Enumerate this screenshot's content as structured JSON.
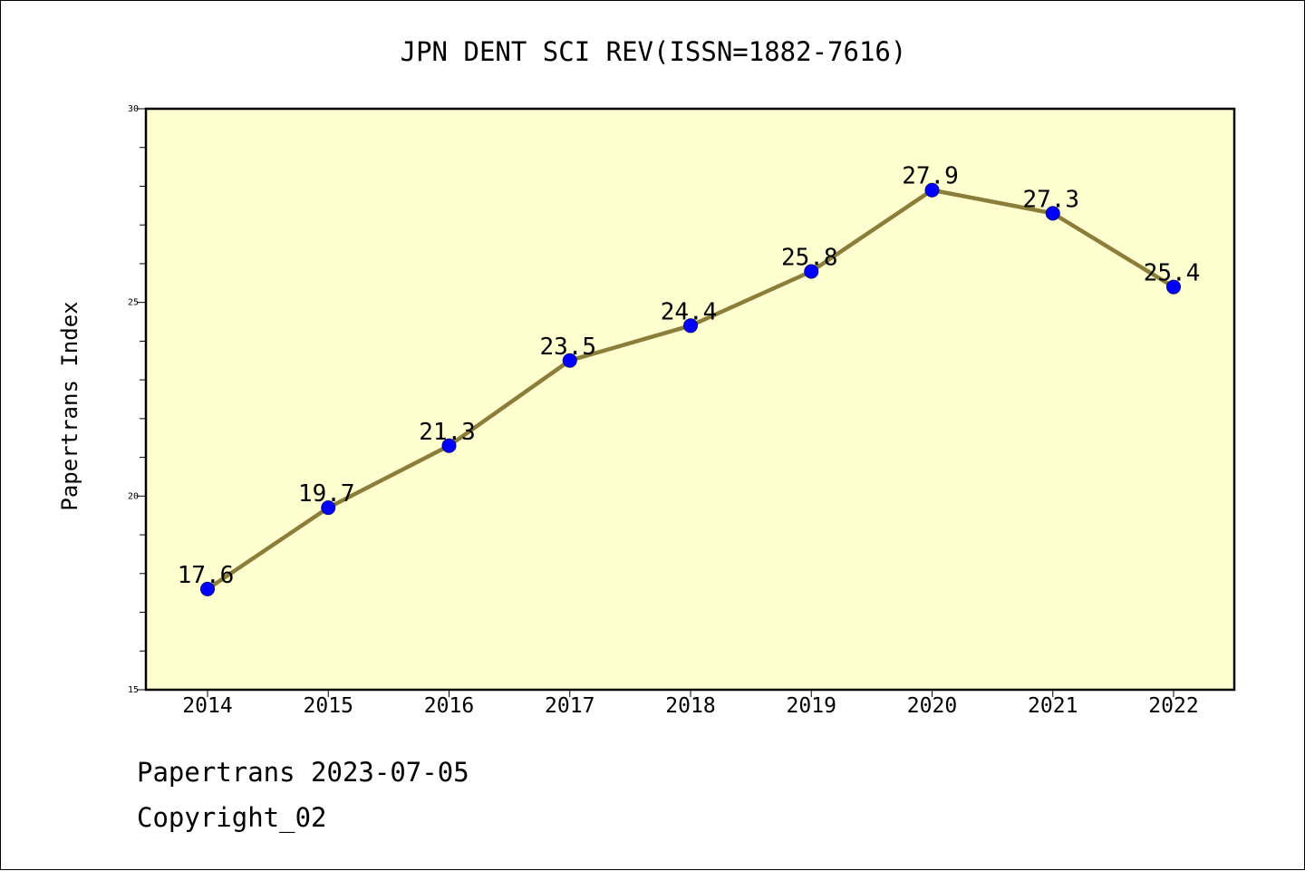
{
  "chart_data": {
    "type": "line",
    "title": "JPN DENT SCI REV(ISSN=1882-7616)",
    "xlabel": "",
    "ylabel": "Papertrans Index",
    "x": [
      "2014",
      "2015",
      "2016",
      "2017",
      "2018",
      "2019",
      "2020",
      "2021",
      "2022"
    ],
    "series": [
      {
        "values": [
          17.6,
          19.7,
          21.3,
          23.5,
          24.4,
          25.8,
          27.9,
          27.3,
          25.4
        ],
        "labels": [
          "17.6",
          "19.7",
          "21.3",
          "23.5",
          "24.4",
          "25.8",
          "27.9",
          "27.3",
          "25.4"
        ]
      }
    ],
    "ylim": [
      15,
      30
    ],
    "yticks": [
      "15",
      "20",
      "25",
      "30"
    ],
    "grid": false,
    "legend": "none",
    "colors": {
      "plot_background": "#ffffd0",
      "line": "#8b7d3a",
      "marker": "#0000ff",
      "marker_edge": "#00008b"
    }
  },
  "footer": {
    "date_line": "Papertrans 2023-07-05",
    "copyright": "Copyright_02"
  }
}
